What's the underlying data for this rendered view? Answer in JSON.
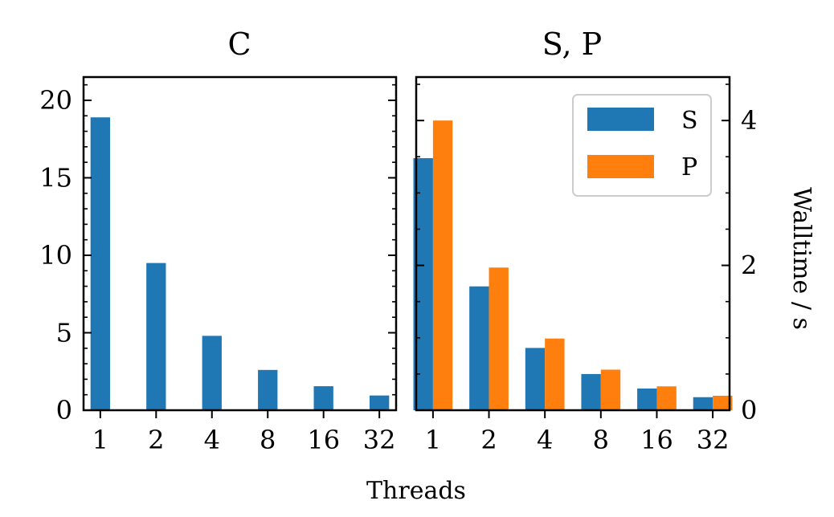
{
  "figure": {
    "xlabel": "Threads",
    "ylabel_right": "Walltime / s"
  },
  "colors": {
    "S": "#1f77b4",
    "P": "#ff7f0e",
    "C": "#1f77b4"
  },
  "chart_data": [
    {
      "type": "bar",
      "title": "C",
      "categories": [
        "1",
        "2",
        "4",
        "8",
        "16",
        "32"
      ],
      "series": [
        {
          "values": [
            18.9,
            9.5,
            4.8,
            2.6,
            1.55,
            0.95
          ]
        }
      ],
      "ylim": [
        0,
        21.5
      ],
      "yticks": [
        0,
        5,
        10,
        15,
        20
      ],
      "ytick_labels": [
        "0",
        "5",
        "10",
        "15",
        "20"
      ],
      "xlabel": "",
      "ylabel": "",
      "grid": false
    },
    {
      "type": "bar",
      "title": "S, P",
      "categories": [
        "1",
        "2",
        "4",
        "8",
        "16",
        "32"
      ],
      "series": [
        {
          "name": "S",
          "values": [
            3.48,
            1.71,
            0.86,
            0.5,
            0.3,
            0.18
          ]
        },
        {
          "name": "P",
          "values": [
            4.0,
            1.97,
            0.99,
            0.56,
            0.33,
            0.2
          ]
        }
      ],
      "ylim": [
        0,
        4.6
      ],
      "yticks": [
        0,
        2,
        4
      ],
      "ytick_labels": [
        "0",
        "2",
        "4"
      ],
      "y_axis_side": "right",
      "legend_position": "top-right",
      "xlabel": "",
      "ylabel": "Walltime / s",
      "grid": false
    }
  ]
}
